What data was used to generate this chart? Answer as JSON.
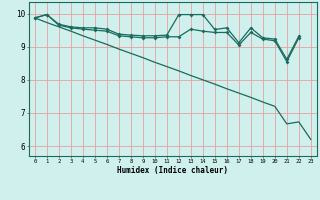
{
  "xlabel": "Humidex (Indice chaleur)",
  "bg_color": "#cff0ed",
  "line_color": "#1a6b5e",
  "grid_color": "#e8a0a0",
  "xlim": [
    -0.5,
    23.5
  ],
  "ylim": [
    5.7,
    10.35
  ],
  "xticks": [
    0,
    1,
    2,
    3,
    4,
    5,
    6,
    7,
    8,
    9,
    10,
    11,
    12,
    13,
    14,
    15,
    16,
    17,
    18,
    19,
    20,
    21,
    22,
    23
  ],
  "yticks": [
    6,
    7,
    8,
    9,
    10
  ],
  "line1_x": [
    0,
    1,
    2,
    3,
    4,
    5,
    6,
    7,
    8,
    9,
    10,
    11,
    12,
    13,
    14,
    15,
    16,
    17,
    18,
    19,
    20,
    21,
    22
  ],
  "line1_y": [
    9.87,
    9.97,
    9.68,
    9.6,
    9.57,
    9.57,
    9.53,
    9.38,
    9.35,
    9.33,
    9.33,
    9.35,
    9.97,
    9.97,
    9.97,
    9.52,
    9.57,
    9.12,
    9.57,
    9.27,
    9.23,
    8.62,
    9.32
  ],
  "line2_x": [
    0,
    1,
    2,
    3,
    4,
    5,
    6,
    7,
    8,
    9,
    10,
    11,
    12,
    13,
    14,
    15,
    16,
    17,
    18,
    19,
    20,
    21,
    22
  ],
  "line2_y": [
    9.87,
    9.97,
    9.65,
    9.57,
    9.53,
    9.5,
    9.47,
    9.33,
    9.3,
    9.27,
    9.27,
    9.3,
    9.3,
    9.53,
    9.47,
    9.43,
    9.43,
    9.05,
    9.43,
    9.23,
    9.18,
    8.55,
    9.27
  ],
  "line3_x": [
    0,
    1,
    2,
    3,
    4,
    5,
    6,
    7,
    8,
    9,
    10,
    11,
    12,
    13,
    14,
    15,
    16,
    17,
    18,
    19,
    20,
    21,
    22,
    23
  ],
  "line3_y": [
    9.87,
    9.73,
    9.6,
    9.47,
    9.33,
    9.2,
    9.07,
    8.93,
    8.8,
    8.67,
    8.53,
    8.4,
    8.27,
    8.13,
    8.0,
    7.87,
    7.73,
    7.6,
    7.47,
    7.33,
    7.2,
    6.67,
    6.73,
    6.2
  ]
}
